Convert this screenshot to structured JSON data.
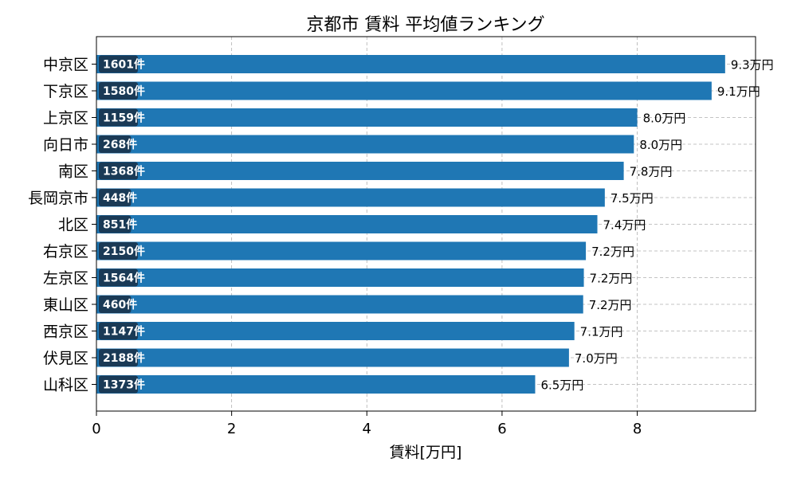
{
  "chart_data": {
    "type": "bar",
    "orientation": "horizontal",
    "title": "京都市 賃料 平均値ランキング",
    "xlabel": "賃料[万円]",
    "ylabel": "",
    "xlim": [
      0,
      9.75
    ],
    "xticks": [
      "0",
      "2",
      "4",
      "6",
      "8"
    ],
    "grid": true,
    "bar_color": "#1f77b4",
    "badge_color": "#1a3a56",
    "value_suffix": "万円",
    "count_suffix": "件",
    "categories": [
      "中京区",
      "下京区",
      "上京区",
      "向日市",
      "南区",
      "長岡京市",
      "北区",
      "右京区",
      "左京区",
      "東山区",
      "西京区",
      "伏見区",
      "山科区"
    ],
    "values": [
      9.3,
      9.1,
      8.0,
      8.0,
      7.8,
      7.5,
      7.4,
      7.2,
      7.2,
      7.2,
      7.1,
      7.0,
      6.5
    ],
    "plot_values": [
      9.3,
      9.1,
      8.0,
      7.95,
      7.8,
      7.52,
      7.41,
      7.24,
      7.21,
      7.2,
      7.07,
      6.99,
      6.49
    ],
    "counts": [
      1601,
      1580,
      1159,
      268,
      1368,
      448,
      851,
      2150,
      1564,
      460,
      1147,
      2188,
      1373
    ]
  }
}
